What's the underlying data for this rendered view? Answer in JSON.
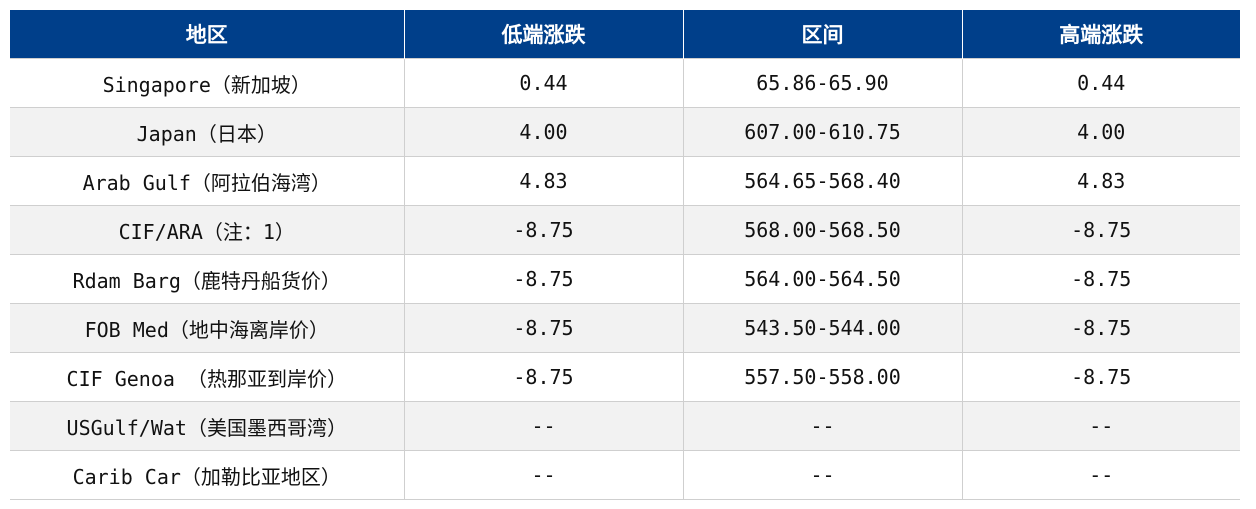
{
  "headers": [
    "地区",
    "低端涨跌",
    "区间",
    "高端涨跌"
  ],
  "rows": [
    {
      "region": "Singapore（新加坡）",
      "low_change": "0.44",
      "range": "65.86-65.90",
      "high_change": "0.44"
    },
    {
      "region": "Japan（日本）",
      "low_change": "4.00",
      "range": "607.00-610.75",
      "high_change": "4.00"
    },
    {
      "region": "Arab Gulf（阿拉伯海湾）",
      "low_change": "4.83",
      "range": "564.65-568.40",
      "high_change": "4.83"
    },
    {
      "region": "CIF/ARA（注：1）",
      "low_change": "-8.75",
      "range": "568.00-568.50",
      "high_change": "-8.75"
    },
    {
      "region": "Rdam Barg（鹿特丹船货价）",
      "low_change": "-8.75",
      "range": "564.00-564.50",
      "high_change": "-8.75"
    },
    {
      "region": "FOB Med（地中海离岸价）",
      "low_change": "-8.75",
      "range": "543.50-544.00",
      "high_change": "-8.75"
    },
    {
      "region": "CIF Genoa （热那亚到岸价）",
      "low_change": "-8.75",
      "range": "557.50-558.00",
      "high_change": "-8.75"
    },
    {
      "region": "USGulf/Wat（美国墨西哥湾）",
      "low_change": "--",
      "range": "--",
      "high_change": "--"
    },
    {
      "region": "Carib Car（加勒比亚地区）",
      "low_change": "--",
      "range": "--",
      "high_change": "--"
    }
  ],
  "colors": {
    "header_bg": "#003f8a",
    "header_text": "#ffffff",
    "alt_row_bg": "#f2f2f2",
    "border": "#cfcfcf"
  }
}
